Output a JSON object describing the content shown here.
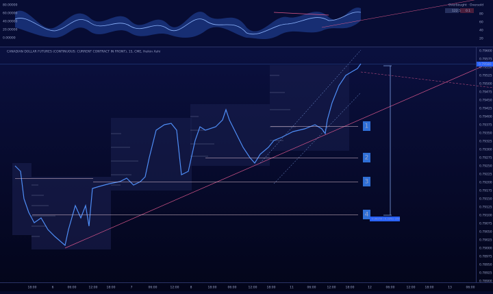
{
  "oscillator": {
    "left_axis": [
      "80.00000",
      "60.00000",
      "40.00000",
      "20.00000",
      "0.00000"
    ],
    "right_axis": [
      "80",
      "60",
      "40",
      "20"
    ],
    "legend": {
      "title": "Overbought · Oversold",
      "overbought": "122.5",
      "oversold": "0.1"
    }
  },
  "main": {
    "title": "CANADIAN DOLLAR FUTURES (CONTINUOUS: CURRENT CONTRACT IN FRONT), 15, CME, Heikin Ashi",
    "price_axis": [
      "0.79600",
      "0.79575",
      "0.79550",
      "0.79525",
      "0.79500",
      "0.79475",
      "0.79450",
      "0.79425",
      "0.79400",
      "0.79375",
      "0.79350",
      "0.79325",
      "0.79300",
      "0.79275",
      "0.79250",
      "0.79225",
      "0.79200",
      "0.79175",
      "0.79150",
      "0.79125",
      "0.79100",
      "0.79075",
      "0.79050",
      "0.79025",
      "0.79000",
      "0.78975",
      "0.78950",
      "0.78925",
      "0.78900"
    ],
    "current_price": "0.79580",
    "zones": [
      "1",
      "2",
      "3",
      "4"
    ],
    "measure": "-0.00259 (-0.33%) -259"
  },
  "time_axis": [
    "18:00",
    "6",
    "06:00",
    "12:00",
    "18:00",
    "7",
    "06:00",
    "12:00",
    "8",
    "18:00",
    "06:00",
    "12:00",
    "18:00",
    "11",
    "06:00",
    "12:00",
    "18:00",
    "12",
    "06:00",
    "12:00",
    "18:00",
    "13",
    "06:00"
  ]
}
